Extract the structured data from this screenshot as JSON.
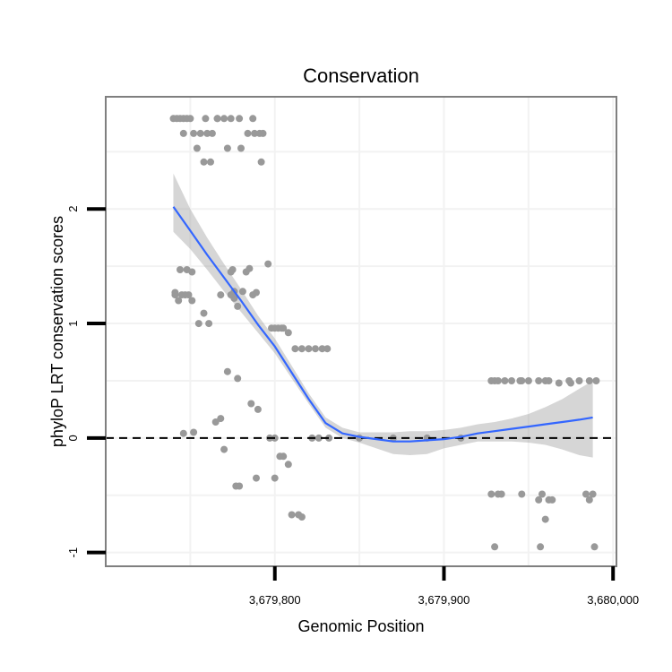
{
  "chart_data": {
    "type": "scatter",
    "title": "Conservation",
    "xlabel": "Genomic Position",
    "ylabel": "phyloP LRT conservation scores",
    "xlim": [
      3679700,
      3680002
    ],
    "ylim": [
      -1.12,
      2.98
    ],
    "x_ticks": [
      3679800,
      3679900,
      3680000
    ],
    "x_tick_labels": [
      "3,679,800",
      "3,679,900",
      "3,680,000"
    ],
    "y_ticks": [
      -1,
      0,
      1,
      2
    ],
    "y_tick_labels": [
      "-1",
      "0",
      "1",
      "2"
    ],
    "reference_line": {
      "y": 0,
      "style": "dashed",
      "color": "#000000"
    },
    "colors": {
      "points": "#999999",
      "smooth": "#3366ff",
      "ribbon": "#999999",
      "panel_border": "#7f7f7f",
      "grid": "#f2f2f2"
    },
    "series": [
      {
        "name": "scores",
        "kind": "points",
        "x": [
          3679740,
          3679742,
          3679744,
          3679746,
          3679748,
          3679750,
          3679746,
          3679752,
          3679756,
          3679760,
          3679763,
          3679754,
          3679758,
          3679762,
          3679766,
          3679759,
          3679766,
          3679770,
          3679774,
          3679779,
          3679784,
          3679788,
          3679791,
          3679792,
          3679772,
          3679780,
          3679787,
          3679793,
          3679741,
          3679743,
          3679745,
          3679747,
          3679749,
          3679741,
          3679744,
          3679748,
          3679751,
          3679751,
          3679755,
          3679758,
          3679761,
          3679746,
          3679752,
          3679765,
          3679768,
          3679768,
          3679772,
          3679775,
          3679774,
          3679776,
          3679778,
          3679781,
          3679783,
          3679785,
          3679787,
          3679789,
          3679774,
          3679776,
          3679778,
          3679786,
          3679790,
          3679796,
          3679798,
          3679800,
          3679802,
          3679804,
          3679805,
          3679808,
          3679812,
          3679816,
          3679820,
          3679824,
          3679828,
          3679831,
          3679770,
          3679777,
          3679779,
          3679789,
          3679800,
          3679803,
          3679805,
          3679808,
          3679810,
          3679814,
          3679816,
          3679822,
          3679826,
          3679797,
          3679800,
          3679832,
          3679850,
          3679870,
          3679890,
          3679910,
          3679930,
          3679945,
          3679960,
          3679975,
          3679928,
          3679932,
          3679936,
          3679940,
          3679946,
          3679950,
          3679956,
          3679962,
          3679968,
          3679974,
          3679980,
          3679986,
          3679990,
          3679928,
          3679932,
          3679934,
          3679946,
          3679956,
          3679958,
          3679962,
          3679964,
          3679984,
          3679986,
          3679988,
          3679960,
          3679930,
          3679957,
          3679989
        ],
        "y": [
          2.79,
          2.79,
          2.79,
          2.79,
          2.79,
          2.79,
          2.66,
          2.66,
          2.66,
          2.66,
          2.66,
          2.53,
          2.41,
          2.41,
          2.79,
          2.79,
          2.79,
          2.79,
          2.79,
          2.79,
          2.66,
          2.66,
          2.66,
          2.41,
          2.53,
          2.53,
          2.79,
          2.66,
          1.25,
          1.2,
          1.25,
          1.25,
          1.25,
          1.27,
          1.47,
          1.47,
          1.45,
          1.2,
          1.0,
          1.09,
          1.0,
          0.04,
          0.05,
          0.14,
          0.17,
          1.25,
          0.58,
          1.47,
          1.45,
          1.22,
          1.15,
          1.28,
          1.45,
          1.48,
          1.25,
          1.27,
          1.25,
          1.28,
          0.52,
          0.3,
          0.25,
          1.52,
          0.96,
          0.96,
          0.96,
          0.96,
          0.96,
          0.92,
          0.78,
          0.78,
          0.78,
          0.78,
          0.78,
          0.78,
          -0.1,
          -0.42,
          -0.42,
          -0.35,
          -0.35,
          -0.16,
          -0.16,
          -0.23,
          -0.67,
          -0.67,
          -0.69,
          0.0,
          0.0,
          0.0,
          0.0,
          0.0,
          0.0,
          0.0,
          0.0,
          0.0,
          0.5,
          0.5,
          0.5,
          0.48,
          0.5,
          0.5,
          0.5,
          0.5,
          0.5,
          0.5,
          0.5,
          0.5,
          0.48,
          0.5,
          0.5,
          0.5,
          0.5,
          -0.49,
          -0.49,
          -0.49,
          -0.49,
          -0.54,
          -0.49,
          -0.54,
          -0.54,
          -0.49,
          -0.54,
          -0.49,
          -0.71,
          -0.95,
          -0.95,
          -0.95
        ]
      },
      {
        "name": "loess fit",
        "kind": "line",
        "x": [
          3679740,
          3679750,
          3679760,
          3679770,
          3679780,
          3679790,
          3679800,
          3679810,
          3679820,
          3679830,
          3679840,
          3679850,
          3679860,
          3679870,
          3679880,
          3679890,
          3679900,
          3679910,
          3679920,
          3679930,
          3679940,
          3679950,
          3679960,
          3679970,
          3679980,
          3679988
        ],
        "y": [
          2.02,
          1.81,
          1.6,
          1.4,
          1.2,
          0.99,
          0.8,
          0.57,
          0.34,
          0.13,
          0.04,
          0.01,
          -0.01,
          -0.03,
          -0.03,
          -0.02,
          -0.01,
          0.01,
          0.04,
          0.06,
          0.08,
          0.1,
          0.12,
          0.14,
          0.16,
          0.18
        ],
        "lower": [
          1.8,
          1.65,
          1.47,
          1.28,
          1.1,
          0.92,
          0.74,
          0.52,
          0.3,
          0.09,
          0.0,
          -0.04,
          -0.09,
          -0.14,
          -0.15,
          -0.14,
          -0.09,
          -0.06,
          -0.03,
          -0.03,
          -0.03,
          -0.04,
          -0.06,
          -0.1,
          -0.15,
          -0.17
        ],
        "upper": [
          2.31,
          2.0,
          1.75,
          1.52,
          1.3,
          1.07,
          0.87,
          0.63,
          0.39,
          0.18,
          0.09,
          0.05,
          0.05,
          0.05,
          0.06,
          0.06,
          0.07,
          0.09,
          0.12,
          0.14,
          0.17,
          0.21,
          0.27,
          0.34,
          0.43,
          0.5
        ]
      }
    ]
  }
}
